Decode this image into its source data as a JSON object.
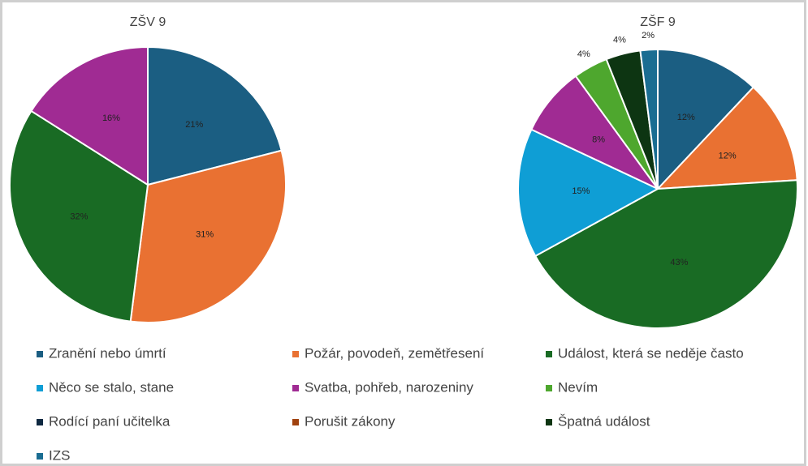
{
  "chart_data": [
    {
      "type": "pie",
      "title": "ZŠV 9",
      "values": [
        21,
        31,
        32,
        0,
        16,
        0,
        0,
        0,
        0,
        0
      ],
      "value_labels": [
        "21%",
        "31%",
        "32%",
        null,
        "16%",
        null,
        null,
        null,
        null,
        null
      ]
    },
    {
      "type": "pie",
      "title": "ZŠF 9",
      "values": [
        12,
        12,
        43,
        15,
        8,
        4,
        0,
        0,
        4,
        2
      ],
      "value_labels": [
        "12%",
        "12%",
        "43%",
        "15%",
        "8%",
        "4%",
        null,
        null,
        "4%",
        "2%"
      ]
    }
  ],
  "legend": {
    "labels": [
      "Zranění nebo úmrtí",
      "Požár, povodeň, zemětřesení",
      "Událost, která se neděje často",
      "Něco se stalo, stane",
      "Svatba, pohřeb, narozeniny",
      "Nevím",
      "Rodící paní učitelka",
      "Porušit zákony",
      "Špatná událost",
      "IZS"
    ],
    "colors": [
      "#1b5e82",
      "#e97132",
      "#196b24",
      "#0f9ed5",
      "#a02b93",
      "#4ea72e",
      "#0e2841",
      "#a0420f",
      "#0d3512",
      "#1a6d92"
    ]
  }
}
